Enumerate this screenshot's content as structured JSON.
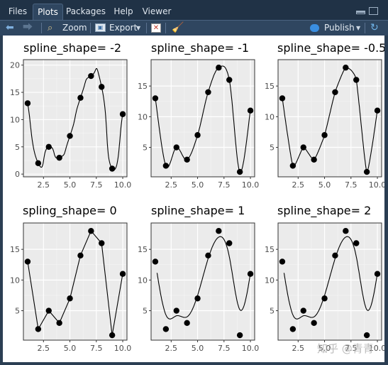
{
  "tabs": [
    {
      "label": "Files"
    },
    {
      "label": "Plots",
      "active": true
    },
    {
      "label": "Packages"
    },
    {
      "label": "Help"
    },
    {
      "label": "Viewer"
    }
  ],
  "toolbar": {
    "zoom_label": "Zoom",
    "export_label": "Export",
    "publish_label": "Publish"
  },
  "watermark": "知乎 @青青",
  "colors": {
    "tabbar": "#203246",
    "toolbar": "#2f4660",
    "panel_bg": "#ebebeb",
    "grid": "#ffffff",
    "point": "#000000"
  },
  "icons": [
    "back-arrow-icon",
    "forward-arrow-icon",
    "zoom-icon",
    "export-icon",
    "dropdown-arrow-icon",
    "remove-plot-icon",
    "broom-icon",
    "publish-icon",
    "refresh-icon",
    "minimize-icon",
    "maximize-icon"
  ],
  "chart_data": [
    {
      "type": "scatter",
      "title": "spline_shape= -2",
      "xlim": [
        0.6,
        10.4
      ],
      "ylim": [
        -0.5,
        21
      ],
      "x_ticks": [
        "2.5",
        "5.0",
        "7.5",
        "10.0"
      ],
      "y_ticks": [
        "0",
        "5",
        "10",
        "15",
        "20"
      ],
      "x": [
        1,
        2,
        3,
        4,
        5,
        6,
        7,
        8,
        9,
        10
      ],
      "y": [
        13,
        2,
        5,
        3,
        7,
        14,
        18,
        16,
        1,
        11
      ],
      "line": "spline",
      "shape": -2
    },
    {
      "type": "scatter",
      "title": "spline_shape= -1",
      "xlim": [
        0.6,
        10.4
      ],
      "ylim": [
        0.2,
        19.3
      ],
      "x_ticks": [
        "2.5",
        "5.0",
        "7.5",
        "10.0"
      ],
      "y_ticks": [
        "5",
        "10",
        "15"
      ],
      "x": [
        1,
        2,
        3,
        4,
        5,
        6,
        7,
        8,
        9,
        10
      ],
      "y": [
        13,
        2,
        5,
        3,
        7,
        14,
        18,
        16,
        1,
        11
      ],
      "line": "spline",
      "shape": -1
    },
    {
      "type": "scatter",
      "title": "spline_shape= -0.5",
      "xlim": [
        0.6,
        10.4
      ],
      "ylim": [
        0.2,
        19.3
      ],
      "x_ticks": [
        "2.5",
        "5.0",
        "7.5",
        "10.0"
      ],
      "y_ticks": [
        "5",
        "10",
        "15"
      ],
      "x": [
        1,
        2,
        3,
        4,
        5,
        6,
        7,
        8,
        9,
        10
      ],
      "y": [
        13,
        2,
        5,
        3,
        7,
        14,
        18,
        16,
        1,
        11
      ],
      "line": "spline",
      "shape": -0.5
    },
    {
      "type": "scatter",
      "title": "spling_shape= 0",
      "xlim": [
        0.6,
        10.4
      ],
      "ylim": [
        0.2,
        19.3
      ],
      "x_ticks": [
        "2.5",
        "5.0",
        "7.5",
        "10.0"
      ],
      "y_ticks": [
        "5",
        "10",
        "15"
      ],
      "x": [
        1,
        2,
        3,
        4,
        5,
        6,
        7,
        8,
        9,
        10
      ],
      "y": [
        13,
        2,
        5,
        3,
        7,
        14,
        18,
        16,
        1,
        11
      ],
      "line": "spline",
      "shape": 0
    },
    {
      "type": "scatter",
      "title": "spline_shape= 1",
      "xlim": [
        0.6,
        10.4
      ],
      "ylim": [
        0.2,
        19.3
      ],
      "x_ticks": [
        "2.5",
        "5.0",
        "7.5",
        "10.0"
      ],
      "y_ticks": [
        "5",
        "10",
        "15"
      ],
      "x": [
        1,
        2,
        3,
        4,
        5,
        6,
        7,
        8,
        9,
        10
      ],
      "y": [
        13,
        2,
        5,
        3,
        7,
        14,
        18,
        16,
        1,
        11
      ],
      "line": "spline",
      "shape": 1
    },
    {
      "type": "scatter",
      "title": "spline_shape= 2",
      "xlim": [
        0.6,
        10.4
      ],
      "ylim": [
        0.2,
        19.3
      ],
      "x_ticks": [
        "2.5",
        "5.0",
        "7.5",
        "10.0"
      ],
      "y_ticks": [
        "5",
        "10",
        "15"
      ],
      "x": [
        1,
        2,
        3,
        4,
        5,
        6,
        7,
        8,
        9,
        10
      ],
      "y": [
        13,
        2,
        5,
        3,
        7,
        14,
        18,
        16,
        1,
        11
      ],
      "line": "spline",
      "shape": 2
    }
  ]
}
